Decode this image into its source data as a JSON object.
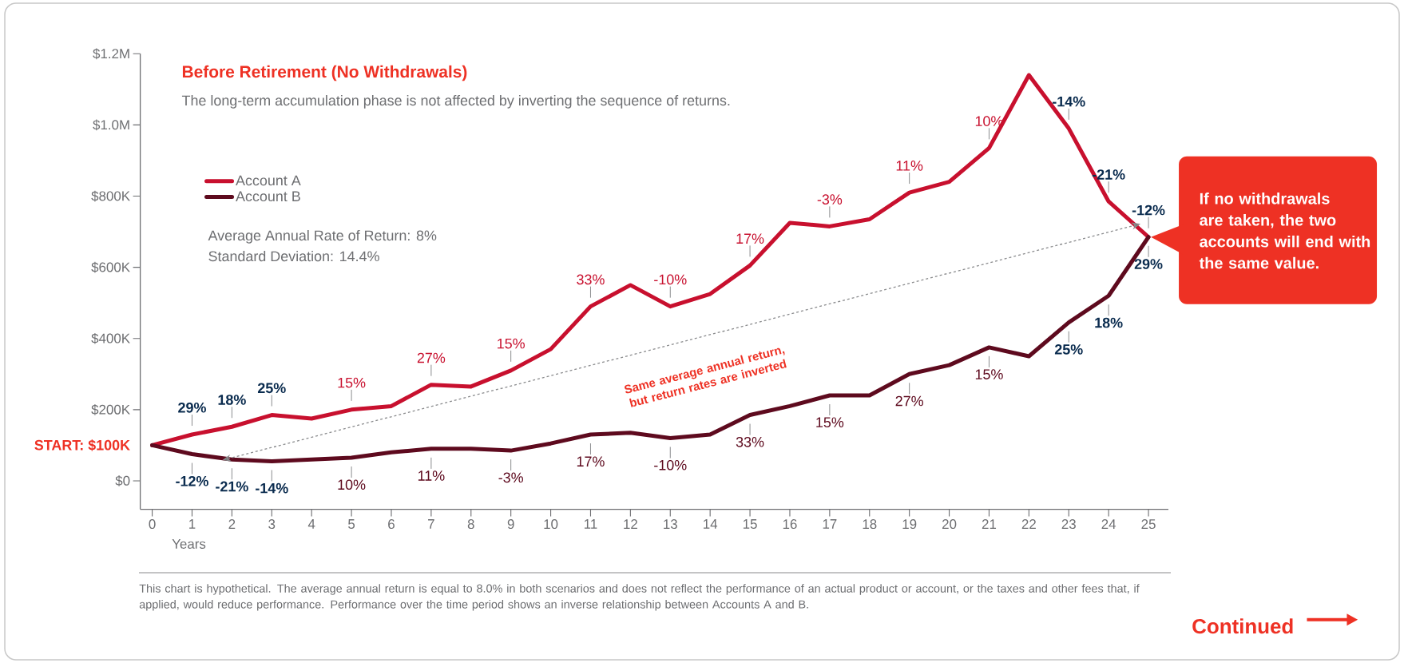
{
  "chart_data": {
    "type": "line",
    "title": "Before Retirement (No Withdrawals)",
    "subtitle": "The long-term accumulation phase is not affected by inverting the sequence of returns.",
    "xlabel": "Years",
    "x": [
      0,
      1,
      2,
      3,
      4,
      5,
      6,
      7,
      8,
      9,
      10,
      11,
      12,
      13,
      14,
      15,
      16,
      17,
      18,
      19,
      20,
      21,
      22,
      23,
      24,
      25
    ],
    "series": [
      {
        "name": "Account A",
        "color": "#c8102e",
        "values": [
          100000,
          130000,
          152000,
          185000,
          175000,
          200000,
          210000,
          270000,
          265000,
          310000,
          370000,
          490000,
          550000,
          490000,
          525000,
          605000,
          725000,
          715000,
          735000,
          810000,
          840000,
          935000,
          1140000,
          990000,
          785000,
          685000
        ]
      },
      {
        "name": "Account B",
        "color": "#5e0a1e",
        "values": [
          100000,
          75000,
          60000,
          55000,
          60000,
          65000,
          80000,
          90000,
          90000,
          85000,
          105000,
          130000,
          135000,
          120000,
          130000,
          185000,
          210000,
          240000,
          240000,
          300000,
          325000,
          375000,
          350000,
          445000,
          520000,
          685000
        ]
      }
    ],
    "xlim": [
      -0.3,
      25.5
    ],
    "ylim": [
      -80000,
      1200000
    ],
    "xticks": [
      0,
      1,
      2,
      3,
      4,
      5,
      6,
      7,
      8,
      9,
      10,
      11,
      12,
      13,
      14,
      15,
      16,
      17,
      18,
      19,
      20,
      21,
      22,
      23,
      24,
      25
    ],
    "yticks": [
      {
        "value": 0,
        "label": "$0"
      },
      {
        "value": 200000,
        "label": "$200K"
      },
      {
        "value": 400000,
        "label": "$400K"
      },
      {
        "value": 600000,
        "label": "$600K"
      },
      {
        "value": 800000,
        "label": "$800K"
      },
      {
        "value": 1000000,
        "label": "$1.0M"
      },
      {
        "value": 1200000,
        "label": "$1.2M"
      }
    ],
    "annotations": [
      {
        "text": "START: $100K",
        "x": 0,
        "y": 100000
      },
      "Average Annual Rate of Return: 8%",
      "Standard Deviation: 14.4%",
      "Same average annual return, but return rates are inverted",
      "If no withdrawals are taken, the two accounts will end with the same value.",
      "This chart is hypothetical. The average annual return is equal to 8.0% in both scenarios and does not reflect the performance of an actual product or account, or the taxes and other fees that, if applied, would reduce performance. Performance over the time period shows an inverse relationship between Accounts A and B.",
      "Continued",
      {
        "text": "29%",
        "x": 1,
        "y": 130000
      },
      {
        "text": "18%",
        "x": 2,
        "y": 152000
      },
      {
        "text": "25%",
        "x": 3,
        "y": 185000
      },
      {
        "text": "15%",
        "x": 5,
        "y": 200000
      },
      {
        "text": "27%",
        "x": 7,
        "y": 270000
      },
      {
        "text": "15%",
        "x": 9,
        "y": 310000
      },
      {
        "text": "33%",
        "x": 11,
        "y": 490000
      },
      {
        "text": "-10%",
        "x": 13,
        "y": 490000
      },
      {
        "text": "17%",
        "x": 15,
        "y": 605000
      },
      {
        "text": "-3%",
        "x": 17,
        "y": 715000
      },
      {
        "text": "11%",
        "x": 19,
        "y": 810000
      },
      {
        "text": "10%",
        "x": 21,
        "y": 935000
      },
      {
        "text": "-14%",
        "x": 23,
        "y": 990000
      },
      {
        "text": "-21%",
        "x": 24,
        "y": 785000
      },
      {
        "text": "-12%",
        "x": 25,
        "y": 685000
      },
      {
        "text": "-12%",
        "x": 1,
        "y": 75000
      },
      {
        "text": "-21%",
        "x": 2,
        "y": 60000
      },
      {
        "text": "-14%",
        "x": 3,
        "y": 55000
      },
      {
        "text": "10%",
        "x": 5,
        "y": 65000
      },
      {
        "text": "11%",
        "x": 7,
        "y": 90000
      },
      {
        "text": "-3%",
        "x": 9,
        "y": 85000
      },
      {
        "text": "17%",
        "x": 11,
        "y": 130000
      },
      {
        "text": "-10%",
        "x": 13,
        "y": 120000
      },
      {
        "text": "33%",
        "x": 15,
        "y": 185000
      },
      {
        "text": "15%",
        "x": 17,
        "y": 240000
      },
      {
        "text": "27%",
        "x": 19,
        "y": 300000
      },
      {
        "text": "15%",
        "x": 21,
        "y": 375000
      },
      {
        "text": "25%",
        "x": 23,
        "y": 445000
      },
      {
        "text": "18%",
        "x": 24,
        "y": 520000
      },
      {
        "text": "29%",
        "x": 25,
        "y": 685000
      }
    ],
    "legend": "top left",
    "grid": false,
    "marker": "none",
    "line_style": "solid"
  }
}
